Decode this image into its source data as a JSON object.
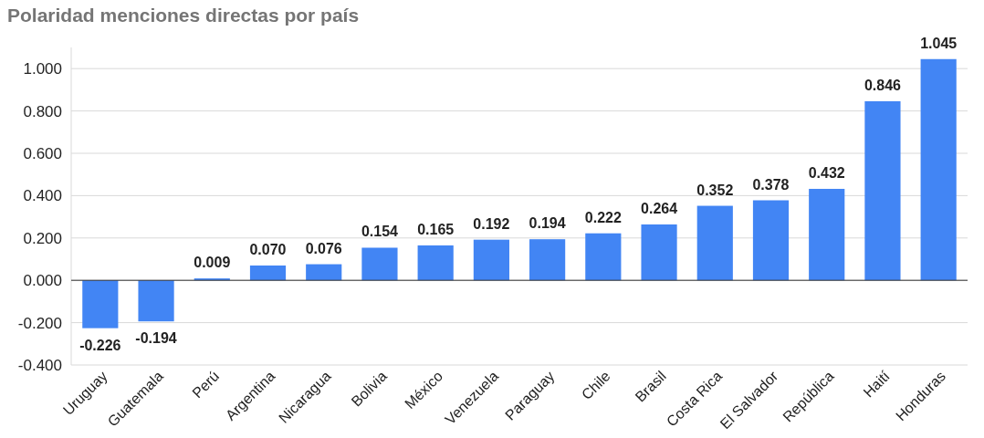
{
  "chart_data": {
    "type": "bar",
    "title": "Polaridad menciones directas por país",
    "categories": [
      "Uruguay",
      "Guatemala",
      "Perú",
      "Argentina",
      "Nicaragua",
      "Bolivia",
      "México",
      "Venezuela",
      "Paraguay",
      "Chile",
      "Brasil",
      "Costa Rica",
      "El Salvador",
      "República",
      "Haití",
      "Honduras"
    ],
    "values": [
      -0.226,
      -0.194,
      0.009,
      0.07,
      0.076,
      0.154,
      0.165,
      0.192,
      0.194,
      0.222,
      0.264,
      0.352,
      0.378,
      0.432,
      0.846,
      1.045
    ],
    "value_labels": [
      "-0.226",
      "-0.194",
      "0.009",
      "0.070",
      "0.076",
      "0.154",
      "0.165",
      "0.192",
      "0.194",
      "0.222",
      "0.264",
      "0.352",
      "0.378",
      "0.432",
      "0.846",
      "1.045"
    ],
    "color": "#4285f4",
    "ylim": [
      -0.4,
      1.1
    ],
    "yticks": [
      {
        "value": -0.4,
        "label": "-0.400"
      },
      {
        "value": -0.2,
        "label": "-0.200"
      },
      {
        "value": 0,
        "label": "0.000"
      },
      {
        "value": 0.2,
        "label": "0.200"
      },
      {
        "value": 0.4,
        "label": "0.400"
      },
      {
        "value": 0.6,
        "label": "0.600"
      },
      {
        "value": 0.8,
        "label": "0.800"
      },
      {
        "value": 1,
        "label": "1.000"
      }
    ],
    "grid": "y"
  }
}
